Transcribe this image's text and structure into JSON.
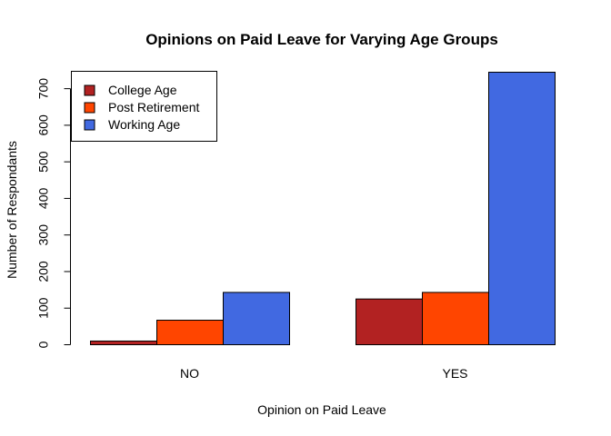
{
  "chart_data": {
    "type": "bar",
    "title": "Opinions on Paid Leave for Varying Age Groups",
    "xlabel": "Opinion on Paid Leave",
    "ylabel": "Number of Respondants",
    "categories": [
      "NO",
      "YES"
    ],
    "series": [
      {
        "name": "College Age",
        "color": "#B22222",
        "values": [
          10,
          125
        ]
      },
      {
        "name": "Post Retirement",
        "color": "#FF4500",
        "values": [
          67,
          143
        ]
      },
      {
        "name": "Working Age",
        "color": "#4169E1",
        "values": [
          143,
          745
        ]
      }
    ],
    "ylim": [
      0,
      745
    ],
    "yticks": [
      0,
      100,
      200,
      300,
      400,
      500,
      600,
      700
    ],
    "grid": false,
    "legend_position": "top-left"
  }
}
